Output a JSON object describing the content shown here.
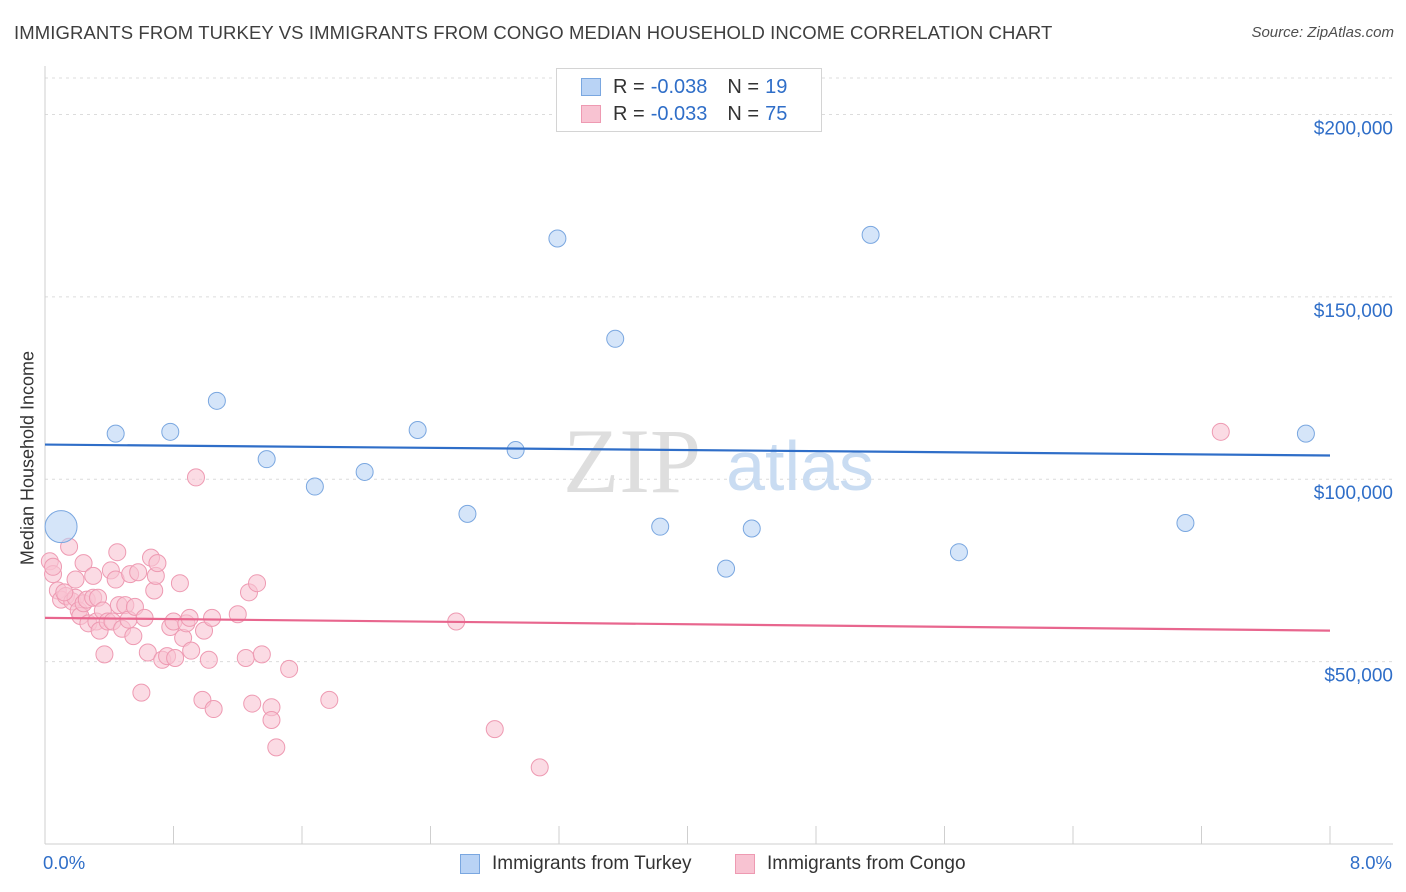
{
  "title": "IMMIGRANTS FROM TURKEY VS IMMIGRANTS FROM CONGO MEDIAN HOUSEHOLD INCOME CORRELATION CHART",
  "source": "Source: ZipAtlas.com",
  "watermark": {
    "zip": "ZIP",
    "atlas": "atlas"
  },
  "colors": {
    "turkey_fill": "#b9d3f5",
    "turkey_stroke": "#7aa7e0",
    "turkey_line": "#2f6ec8",
    "congo_fill": "#f8c3d2",
    "congo_stroke": "#ee9ab2",
    "congo_line": "#e8668e",
    "axis_text": "#2f6ec8"
  },
  "legend": {
    "r_label": "R =",
    "n_label": "N =",
    "turkey": {
      "r": "-0.038",
      "n": "19"
    },
    "congo": {
      "r": "-0.033",
      "n": "75"
    }
  },
  "chart_data": {
    "type": "scatter",
    "title": "IMMIGRANTS FROM TURKEY VS IMMIGRANTS FROM CONGO MEDIAN HOUSEHOLD INCOME CORRELATION CHART",
    "xlabel": "",
    "ylabel": "Median Household Income",
    "xlim": [
      0,
      8
    ],
    "ylim": [
      0,
      210000
    ],
    "x_tick_labels": [
      "0.0%",
      "8.0%"
    ],
    "y_ticks": [
      {
        "value": 50000,
        "label": "$50,000"
      },
      {
        "value": 100000,
        "label": "$100,000"
      },
      {
        "value": 150000,
        "label": "$150,000"
      },
      {
        "value": 200000,
        "label": "$200,000"
      }
    ],
    "grid": "horizontal dashed",
    "series": [
      {
        "name": "Immigrants from Turkey",
        "trend": {
          "x": [
            0,
            8
          ],
          "y": [
            109500,
            106500
          ]
        },
        "points": [
          {
            "x": 0.1,
            "y": 87000,
            "big": true
          },
          {
            "x": 0.44,
            "y": 112500
          },
          {
            "x": 0.78,
            "y": 113000
          },
          {
            "x": 1.07,
            "y": 121500
          },
          {
            "x": 1.38,
            "y": 105500
          },
          {
            "x": 1.68,
            "y": 98000
          },
          {
            "x": 1.99,
            "y": 102000
          },
          {
            "x": 2.32,
            "y": 113500
          },
          {
            "x": 2.63,
            "y": 90500
          },
          {
            "x": 2.93,
            "y": 108000
          },
          {
            "x": 3.19,
            "y": 166000
          },
          {
            "x": 3.55,
            "y": 138500
          },
          {
            "x": 3.83,
            "y": 87000
          },
          {
            "x": 4.24,
            "y": 75500
          },
          {
            "x": 4.4,
            "y": 86500
          },
          {
            "x": 5.14,
            "y": 167000
          },
          {
            "x": 5.69,
            "y": 80000
          },
          {
            "x": 7.1,
            "y": 88000
          },
          {
            "x": 7.85,
            "y": 112500
          }
        ]
      },
      {
        "name": "Immigrants from Congo",
        "trend": {
          "x": [
            0,
            8
          ],
          "y": [
            62000,
            58500
          ]
        },
        "points": [
          {
            "x": 0.03,
            "y": 77500
          },
          {
            "x": 0.05,
            "y": 74000
          },
          {
            "x": 0.05,
            "y": 76000
          },
          {
            "x": 0.08,
            "y": 69500
          },
          {
            "x": 0.1,
            "y": 67000
          },
          {
            "x": 0.13,
            "y": 68000
          },
          {
            "x": 0.15,
            "y": 81500
          },
          {
            "x": 0.17,
            "y": 66500
          },
          {
            "x": 0.19,
            "y": 72500
          },
          {
            "x": 0.19,
            "y": 67500
          },
          {
            "x": 0.21,
            "y": 64000
          },
          {
            "x": 0.22,
            "y": 62500
          },
          {
            "x": 0.24,
            "y": 66000
          },
          {
            "x": 0.24,
            "y": 77000
          },
          {
            "x": 0.26,
            "y": 67000
          },
          {
            "x": 0.27,
            "y": 60500
          },
          {
            "x": 0.3,
            "y": 67500
          },
          {
            "x": 0.3,
            "y": 73500
          },
          {
            "x": 0.32,
            "y": 61000
          },
          {
            "x": 0.33,
            "y": 67500
          },
          {
            "x": 0.34,
            "y": 58500
          },
          {
            "x": 0.36,
            "y": 64000
          },
          {
            "x": 0.37,
            "y": 52000
          },
          {
            "x": 0.39,
            "y": 61000
          },
          {
            "x": 0.41,
            "y": 75000
          },
          {
            "x": 0.42,
            "y": 61000
          },
          {
            "x": 0.44,
            "y": 72500
          },
          {
            "x": 0.45,
            "y": 80000
          },
          {
            "x": 0.46,
            "y": 65500
          },
          {
            "x": 0.48,
            "y": 59000
          },
          {
            "x": 0.5,
            "y": 65500
          },
          {
            "x": 0.52,
            "y": 61500
          },
          {
            "x": 0.53,
            "y": 74000
          },
          {
            "x": 0.55,
            "y": 57000
          },
          {
            "x": 0.56,
            "y": 65000
          },
          {
            "x": 0.58,
            "y": 74500
          },
          {
            "x": 0.6,
            "y": 41500
          },
          {
            "x": 0.62,
            "y": 62000
          },
          {
            "x": 0.64,
            "y": 52500
          },
          {
            "x": 0.66,
            "y": 78500
          },
          {
            "x": 0.68,
            "y": 69500
          },
          {
            "x": 0.69,
            "y": 73500
          },
          {
            "x": 0.7,
            "y": 77000
          },
          {
            "x": 0.73,
            "y": 50500
          },
          {
            "x": 0.76,
            "y": 51500
          },
          {
            "x": 0.78,
            "y": 59500
          },
          {
            "x": 0.8,
            "y": 61000
          },
          {
            "x": 0.81,
            "y": 51000
          },
          {
            "x": 0.84,
            "y": 71500
          },
          {
            "x": 0.86,
            "y": 56500
          },
          {
            "x": 0.88,
            "y": 60500
          },
          {
            "x": 0.9,
            "y": 62000
          },
          {
            "x": 0.91,
            "y": 53000
          },
          {
            "x": 0.94,
            "y": 100500
          },
          {
            "x": 0.98,
            "y": 39500
          },
          {
            "x": 0.99,
            "y": 58500
          },
          {
            "x": 1.02,
            "y": 50500
          },
          {
            "x": 1.04,
            "y": 62000
          },
          {
            "x": 1.05,
            "y": 37000
          },
          {
            "x": 1.2,
            "y": 63000
          },
          {
            "x": 1.25,
            "y": 51000
          },
          {
            "x": 1.27,
            "y": 69000
          },
          {
            "x": 1.29,
            "y": 38500
          },
          {
            "x": 1.32,
            "y": 71500
          },
          {
            "x": 1.35,
            "y": 52000
          },
          {
            "x": 1.41,
            "y": 37500
          },
          {
            "x": 1.41,
            "y": 34000
          },
          {
            "x": 1.44,
            "y": 26500
          },
          {
            "x": 1.52,
            "y": 48000
          },
          {
            "x": 1.77,
            "y": 39500
          },
          {
            "x": 2.56,
            "y": 61000
          },
          {
            "x": 2.8,
            "y": 31500
          },
          {
            "x": 3.08,
            "y": 21000
          },
          {
            "x": 7.32,
            "y": 113000
          },
          {
            "x": 0.12,
            "y": 69000
          }
        ]
      }
    ]
  },
  "bottom_legend": {
    "turkey": "Immigrants from Turkey",
    "congo": "Immigrants from Congo"
  }
}
